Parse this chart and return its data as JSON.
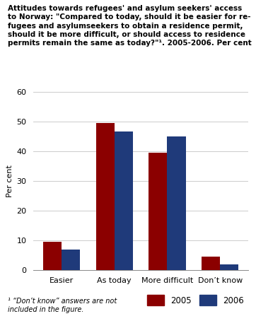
{
  "title_lines": [
    "Attitudes towards refugees' and asylum seekers' access",
    "to Norway: \"Compared to today, should it be easier for re-",
    "fugees and asylumseekers to obtain a residence permit,",
    "should it be more difficult, or should access to residence",
    "permits remain the same as today?\"¹. 2005-2006. Per cent"
  ],
  "ylabel": "Per cent",
  "categories": [
    "Easier",
    "As today",
    "More difficult",
    "Don’t know"
  ],
  "values_2005": [
    9.5,
    49.5,
    39.5,
    4.5
  ],
  "values_2006": [
    7.0,
    46.5,
    45.0,
    2.0
  ],
  "color_2005": "#8B0000",
  "color_2006": "#1F3A7A",
  "ylim": [
    0,
    60
  ],
  "yticks": [
    0,
    10,
    20,
    30,
    40,
    50,
    60
  ],
  "footnote": "¹ “Don’t know” answers are not\nincluded in the figure.",
  "legend_2005": "2005",
  "legend_2006": "2006",
  "background_color": "#ffffff",
  "grid_color": "#cccccc"
}
